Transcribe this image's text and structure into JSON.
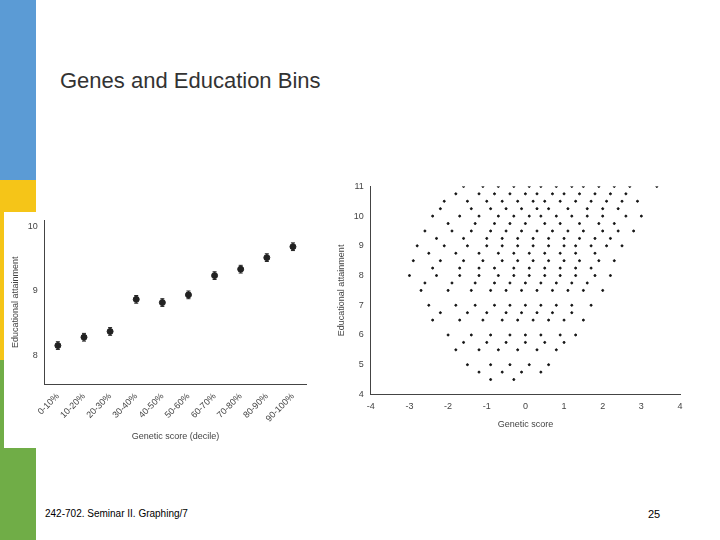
{
  "slide": {
    "title": "Genes and Education Bins",
    "footer": "242-702. Seminar II. Graphing/7",
    "page": 25
  },
  "chart_data": [
    {
      "type": "scatter",
      "x_label": "Genetic score (decile)",
      "y_label": "Educational attainment",
      "categories": [
        "0-10%",
        "10-20%",
        "20-30%",
        "30-40%",
        "40-50%",
        "50-60%",
        "60-70%",
        "70-80%",
        "80-90%",
        "90-100%"
      ],
      "values": [
        8.15,
        8.28,
        8.37,
        8.87,
        8.82,
        8.94,
        9.24,
        9.34,
        9.52,
        9.69
      ],
      "errors": [
        0.06,
        0.06,
        0.06,
        0.06,
        0.06,
        0.06,
        0.06,
        0.06,
        0.06,
        0.06
      ],
      "color": "#222222",
      "marker": "circle",
      "ylim": [
        7.55,
        10.1
      ],
      "yticks": [
        8,
        9,
        10
      ],
      "grid": false
    },
    {
      "type": "scatter",
      "x_label": "Genetic score",
      "y_label": "Educational attainment",
      "x": [
        -1.6,
        -1.1,
        -0.7,
        -0.3,
        0.1,
        0.4,
        0.8,
        1.2,
        1.5,
        1.9,
        2.3,
        2.7,
        3.4,
        -1.8,
        -1.2,
        -0.8,
        -0.4,
        0,
        0.3,
        0.7,
        1.0,
        1.4,
        1.8,
        2.2,
        2.6,
        -2.1,
        -1.5,
        -1.0,
        -0.6,
        -0.2,
        0.2,
        0.5,
        0.9,
        1.3,
        1.7,
        2.1,
        2.5,
        2.9,
        -2.2,
        -1.4,
        -0.9,
        -0.5,
        -0.1,
        0.3,
        0.6,
        1.1,
        1.6,
        2.0,
        2.4,
        -2.4,
        -1.7,
        -1.2,
        -0.7,
        -0.3,
        0.1,
        0.4,
        0.8,
        1.2,
        1.6,
        2.0,
        2.6,
        3.0,
        -2.0,
        -1.3,
        -0.8,
        -0.4,
        0,
        0.5,
        0.9,
        1.4,
        1.9,
        2.3,
        -2.6,
        -1.9,
        -1.4,
        -0.9,
        -0.5,
        -0.1,
        0.3,
        0.7,
        1.1,
        1.5,
        2.0,
        2.4,
        2.8,
        -2.3,
        -1.6,
        -1.0,
        -0.6,
        -0.2,
        0.2,
        0.6,
        1.0,
        1.4,
        1.8,
        2.2,
        -2.8,
        -2.1,
        -1.5,
        -1.0,
        -0.6,
        -0.2,
        0.2,
        0.6,
        1.0,
        1.3,
        1.7,
        2.1,
        2.5,
        -2.5,
        -1.8,
        -1.2,
        -0.7,
        -0.3,
        0.1,
        0.5,
        0.9,
        1.3,
        1.8,
        -2.9,
        -2.2,
        -1.6,
        -1.1,
        -0.6,
        -0.2,
        0.2,
        0.6,
        1.0,
        1.4,
        1.9,
        2.3,
        -2.4,
        -1.7,
        -1.2,
        -0.8,
        -0.3,
        0.1,
        0.5,
        0.9,
        1.3,
        1.7,
        -3.0,
        -2.3,
        -1.7,
        -1.2,
        -0.7,
        -0.3,
        0.1,
        0.5,
        0.9,
        1.3,
        1.8,
        2.2,
        -2.6,
        -1.9,
        -1.3,
        -0.8,
        -0.4,
        0,
        0.4,
        0.8,
        1.2,
        1.6,
        -2.7,
        -2.0,
        -1.4,
        -0.9,
        -0.5,
        -0.1,
        0.3,
        0.7,
        1.1,
        1.5,
        2.0,
        -2.5,
        -1.8,
        -1.3,
        -0.8,
        -0.4,
        0,
        0.4,
        0.8,
        1.2,
        1.7,
        -2.2,
        -1.5,
        -1.0,
        -0.5,
        -0.1,
        0.3,
        0.7,
        1.2,
        -2.4,
        -1.7,
        -1.1,
        -0.6,
        -0.2,
        0.2,
        0.6,
        1.0,
        1.5,
        -2.0,
        -1.4,
        -0.9,
        -0.4,
        0,
        0.4,
        0.9,
        1.3,
        -1.6,
        -1.0,
        -0.5,
        0,
        0.5,
        1.0,
        -1.8,
        -1.2,
        -0.7,
        -0.2,
        0.3,
        0.8,
        -1.5,
        -0.9,
        -0.4,
        0.1,
        0.6,
        -1.2,
        -0.6,
        -0.1,
        0.4,
        -0.9,
        -0.3
      ],
      "values": [
        11,
        11,
        11,
        11,
        11,
        11,
        11,
        11,
        11,
        11,
        11,
        11,
        11,
        10.75,
        10.75,
        10.75,
        10.75,
        10.75,
        10.75,
        10.75,
        10.75,
        10.75,
        10.75,
        10.75,
        10.75,
        10.5,
        10.5,
        10.5,
        10.5,
        10.5,
        10.5,
        10.5,
        10.5,
        10.5,
        10.5,
        10.5,
        10.5,
        10.5,
        10.25,
        10.25,
        10.25,
        10.25,
        10.25,
        10.25,
        10.25,
        10.25,
        10.25,
        10.25,
        10.25,
        10,
        10,
        10,
        10,
        10,
        10,
        10,
        10,
        10,
        10,
        10,
        10,
        10,
        9.75,
        9.75,
        9.75,
        9.75,
        9.75,
        9.75,
        9.75,
        9.75,
        9.75,
        9.75,
        9.5,
        9.5,
        9.5,
        9.5,
        9.5,
        9.5,
        9.5,
        9.5,
        9.5,
        9.5,
        9.5,
        9.5,
        9.5,
        9.25,
        9.25,
        9.25,
        9.25,
        9.25,
        9.25,
        9.25,
        9.25,
        9.25,
        9.25,
        9.25,
        9,
        9,
        9,
        9,
        9,
        9,
        9,
        9,
        9,
        9,
        9,
        9,
        9,
        8.75,
        8.75,
        8.75,
        8.75,
        8.75,
        8.75,
        8.75,
        8.75,
        8.75,
        8.75,
        8.5,
        8.5,
        8.5,
        8.5,
        8.5,
        8.5,
        8.5,
        8.5,
        8.5,
        8.5,
        8.5,
        8.5,
        8.25,
        8.25,
        8.25,
        8.25,
        8.25,
        8.25,
        8.25,
        8.25,
        8.25,
        8.25,
        8,
        8,
        8,
        8,
        8,
        8,
        8,
        8,
        8,
        8,
        8,
        8,
        7.75,
        7.75,
        7.75,
        7.75,
        7.75,
        7.75,
        7.75,
        7.75,
        7.75,
        7.75,
        7.5,
        7.5,
        7.5,
        7.5,
        7.5,
        7.5,
        7.5,
        7.5,
        7.5,
        7.5,
        7.5,
        7,
        7,
        7,
        7,
        7,
        7,
        7,
        7,
        7,
        7,
        6.75,
        6.75,
        6.75,
        6.75,
        6.75,
        6.75,
        6.75,
        6.75,
        6.5,
        6.5,
        6.5,
        6.5,
        6.5,
        6.5,
        6.5,
        6.5,
        6.5,
        6,
        6,
        6,
        6,
        6,
        6,
        6,
        6,
        5.75,
        5.75,
        5.75,
        5.75,
        5.75,
        5.75,
        5.5,
        5.5,
        5.5,
        5.5,
        5.5,
        5.5,
        5,
        5,
        5,
        5,
        5,
        4.75,
        4.75,
        4.75,
        4.75,
        4.5,
        4.5
      ],
      "color": "#111111",
      "marker": "circle",
      "xlim": [
        -4,
        4
      ],
      "xticks": [
        -4,
        -3,
        -2,
        -1,
        0,
        1,
        2,
        3,
        4
      ],
      "ylim": [
        4,
        11
      ],
      "yticks": [
        4,
        5,
        6,
        7,
        8,
        9,
        10,
        11
      ],
      "grid": false
    }
  ]
}
